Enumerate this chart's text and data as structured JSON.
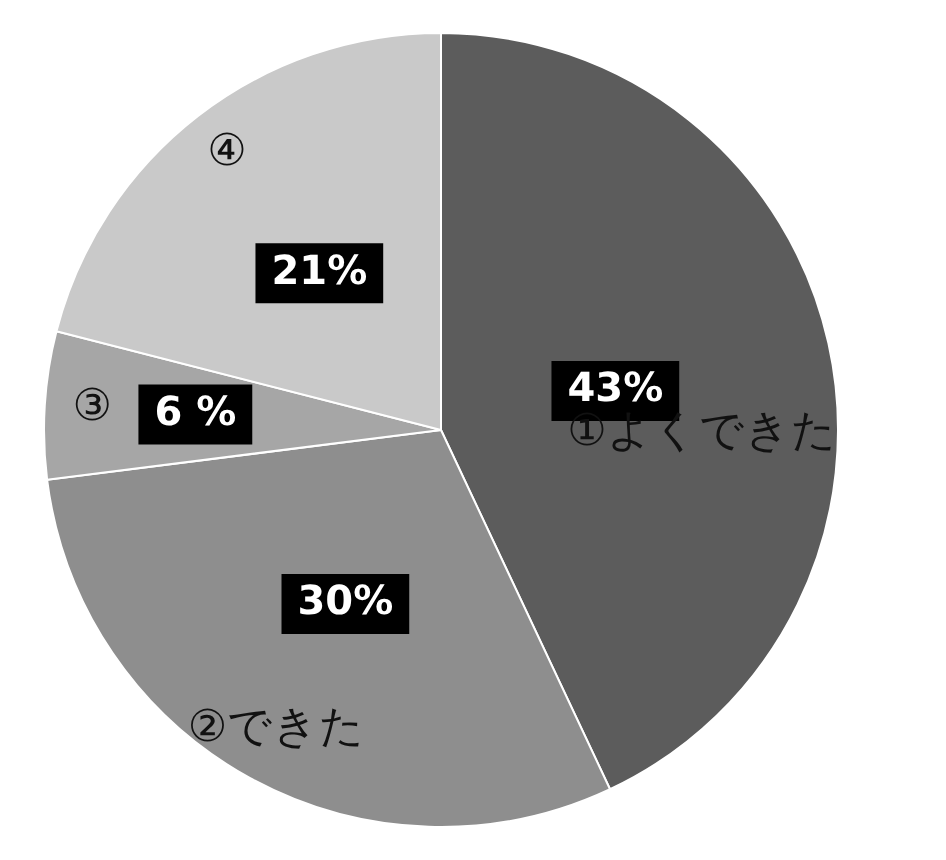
{
  "chart_data": {
    "type": "pie",
    "categories": [
      "①よくできた",
      "②できた",
      "③",
      "④"
    ],
    "values": [
      43,
      30,
      6,
      21
    ],
    "colors": [
      "#5c5c5c",
      "#8e8e8e",
      "#a6a6a6",
      "#c9c9c9"
    ],
    "value_labels": [
      "43%",
      "30%",
      "6 %",
      "21%"
    ],
    "legend": false
  }
}
